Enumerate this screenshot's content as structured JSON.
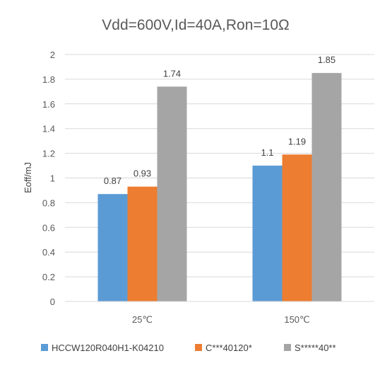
{
  "chart_data": {
    "type": "bar",
    "title": "Vdd=600V,Id=40A,Ron=10Ω",
    "xlabel": "",
    "ylabel": "Eoff/mJ",
    "ylim": [
      0,
      2
    ],
    "yticks": [
      0,
      0.2,
      0.4,
      0.6,
      0.8,
      1,
      1.2,
      1.4,
      1.6,
      1.8,
      2
    ],
    "ytick_labels": [
      "0",
      "0.2",
      "0.4",
      "0.6",
      "0.8",
      "1",
      "1.2",
      "1.4",
      "1.6",
      "1.8",
      "2"
    ],
    "grid": true,
    "legend_position": "bottom",
    "categories": [
      "25℃",
      "150℃"
    ],
    "series": [
      {
        "name": "HCCW120R040H1-K04210",
        "color": "#5B9BD5",
        "values": [
          0.87,
          1.1
        ],
        "labels": [
          "0.87",
          "1.1"
        ]
      },
      {
        "name": "C***40120*",
        "color": "#ED7D31",
        "values": [
          0.93,
          1.19
        ],
        "labels": [
          "0.93",
          "1.19"
        ]
      },
      {
        "name": "S*****40**",
        "color": "#A5A5A5",
        "values": [
          1.74,
          1.85
        ],
        "labels": [
          "1.74",
          "1.85"
        ]
      }
    ]
  }
}
